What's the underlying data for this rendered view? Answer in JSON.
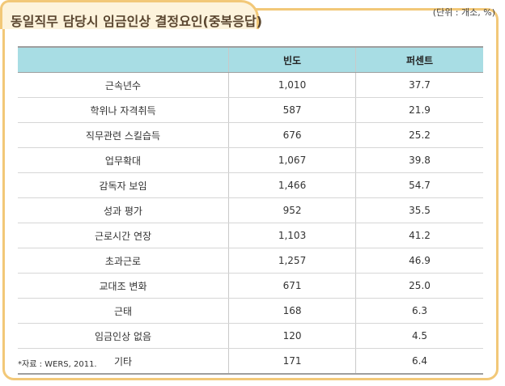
{
  "title": "동일직무 담당시 임금인상 결정요인(중복응답)",
  "unit": "(단위 : 개소, %)",
  "table": {
    "headers": [
      "",
      "빈도",
      "퍼센트"
    ],
    "rows": [
      [
        "근속년수",
        "1,010",
        "37.7"
      ],
      [
        "학위나 자격취득",
        "587",
        "21.9"
      ],
      [
        "직무관련 스킬습득",
        "676",
        "25.2"
      ],
      [
        "업무확대",
        "1,067",
        "39.8"
      ],
      [
        "감독자 보임",
        "1,466",
        "54.7"
      ],
      [
        "성과 평가",
        "952",
        "35.5"
      ],
      [
        "근로시간 연장",
        "1,103",
        "41.2"
      ],
      [
        "초과근로",
        "1,257",
        "46.9"
      ],
      [
        "교대조 변화",
        "671",
        "25.0"
      ],
      [
        "근태",
        "168",
        "6.3"
      ],
      [
        "임금인상 없음",
        "120",
        "4.5"
      ],
      [
        "기타",
        "171",
        "6.4"
      ]
    ]
  },
  "source": "*자료 : WERS, 2011."
}
